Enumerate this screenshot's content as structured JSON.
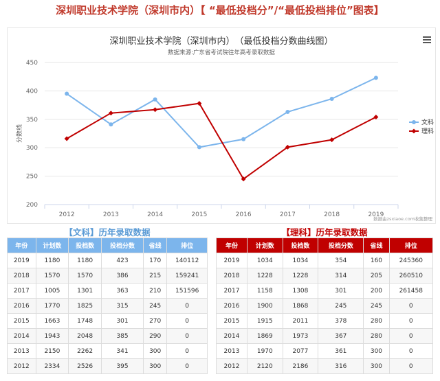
{
  "page": {
    "title": "深圳职业技术学院（深圳市内）【 “最低投档分”/“最低投档排位”图表】"
  },
  "chart_data": {
    "type": "line",
    "title": "深圳职业技术学院（深圳市内）　（最低投档分数曲线图）",
    "subtitle": "数据来源:广东省考试院往年高考录取数据",
    "xlabel": "",
    "ylabel": "分数线",
    "categories": [
      "2012",
      "2013",
      "2014",
      "2015",
      "2016",
      "2017",
      "2018",
      "2019"
    ],
    "ylim": [
      200,
      450
    ],
    "yticks": [
      200,
      250,
      300,
      350,
      400,
      450
    ],
    "grid": true,
    "legend_position": "right",
    "series": [
      {
        "name": "文科",
        "color": "#7cb5ec",
        "marker": "circle",
        "values": [
          395,
          341,
          385,
          301,
          315,
          363,
          386,
          423
        ]
      },
      {
        "name": "理科",
        "color": "#c00000",
        "marker": "diamond",
        "values": [
          316,
          361,
          367,
          378,
          245,
          301,
          314,
          354
        ]
      }
    ],
    "credit": "数据由zsxiaoe.com收集整理"
  },
  "tables": {
    "wenke": {
      "title": "【文科】历年录取数据",
      "headers": [
        "年份",
        "计划数",
        "投档数",
        "投档分数",
        "省线",
        "排位"
      ],
      "rows": [
        [
          "2019",
          "1180",
          "1180",
          "423",
          "170",
          "140112"
        ],
        [
          "2018",
          "1570",
          "1570",
          "386",
          "215",
          "159241"
        ],
        [
          "2017",
          "1005",
          "1301",
          "363",
          "210",
          "151596"
        ],
        [
          "2016",
          "1770",
          "1825",
          "315",
          "245",
          "0"
        ],
        [
          "2015",
          "1663",
          "1748",
          "301",
          "270",
          "0"
        ],
        [
          "2014",
          "1943",
          "2048",
          "385",
          "290",
          "0"
        ],
        [
          "2013",
          "2150",
          "2262",
          "341",
          "300",
          "0"
        ],
        [
          "2012",
          "2334",
          "2526",
          "395",
          "300",
          "0"
        ]
      ]
    },
    "like": {
      "title": "【理科】历年录取数据",
      "headers": [
        "年份",
        "计划数",
        "投档数",
        "投档分数",
        "省线",
        "排位"
      ],
      "rows": [
        [
          "2019",
          "1034",
          "1034",
          "354",
          "160",
          "245360"
        ],
        [
          "2018",
          "1228",
          "1228",
          "314",
          "205",
          "260510"
        ],
        [
          "2017",
          "1158",
          "1308",
          "301",
          "200",
          "261458"
        ],
        [
          "2016",
          "1900",
          "1868",
          "245",
          "245",
          "0"
        ],
        [
          "2015",
          "1915",
          "2011",
          "378",
          "280",
          "0"
        ],
        [
          "2014",
          "1869",
          "1973",
          "367",
          "280",
          "0"
        ],
        [
          "2013",
          "1970",
          "2077",
          "361",
          "300",
          "0"
        ],
        [
          "2012",
          "2120",
          "2186",
          "316",
          "300",
          "0"
        ]
      ]
    }
  }
}
